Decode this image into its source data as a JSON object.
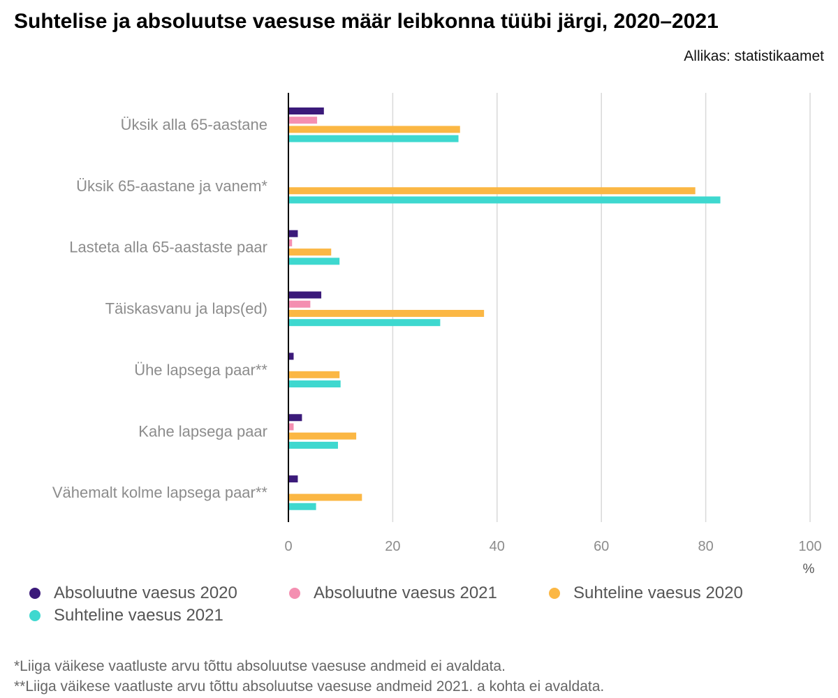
{
  "header": {
    "title": "Suhtelise ja absoluutse vaesuse määr leibkonna tüübi järgi, 2020–2021",
    "source": "Allikas: statistikaamet"
  },
  "chart_data": {
    "type": "bar",
    "orientation": "horizontal",
    "categories": [
      "Üksik alla 65-aastane",
      "Üksik 65-aastane ja vanem*",
      "Lasteta alla 65-aastaste paar",
      "Täiskasvanu ja laps(ed)",
      "Ühe lapsega paar**",
      "Kahe lapsega paar",
      "Vähemalt kolme lapsega paar**"
    ],
    "series": [
      {
        "name": "Absoluutne vaesus 2020",
        "color": "#3b1a7a",
        "values": [
          6.8,
          null,
          1.8,
          6.3,
          1.0,
          2.6,
          1.8
        ]
      },
      {
        "name": "Absoluutne vaesus 2021",
        "color": "#f48fb1",
        "values": [
          5.5,
          null,
          0.7,
          4.2,
          null,
          1.0,
          null
        ]
      },
      {
        "name": "Suhteline vaesus 2020",
        "color": "#fbb744",
        "values": [
          32.9,
          78.0,
          8.2,
          37.5,
          9.8,
          13.0,
          14.1
        ]
      },
      {
        "name": "Suhteline vaesus 2021",
        "color": "#3ed8cf",
        "values": [
          32.6,
          82.8,
          9.8,
          29.1,
          10.0,
          9.5,
          5.3
        ]
      }
    ],
    "xlim": [
      0,
      100
    ],
    "xticks": [
      0,
      20,
      40,
      60,
      80,
      100
    ],
    "xunit": "%",
    "grid": true,
    "legend_position": "bottom"
  },
  "footnotes": [
    "*Liiga väikese vaatluste arvu tõttu absoluutse vaesuse andmeid ei avaldata.",
    "**Liiga väikese vaatluste arvu tõttu absoluutse vaesuse andmeid 2021. a kohta ei avaldata."
  ]
}
